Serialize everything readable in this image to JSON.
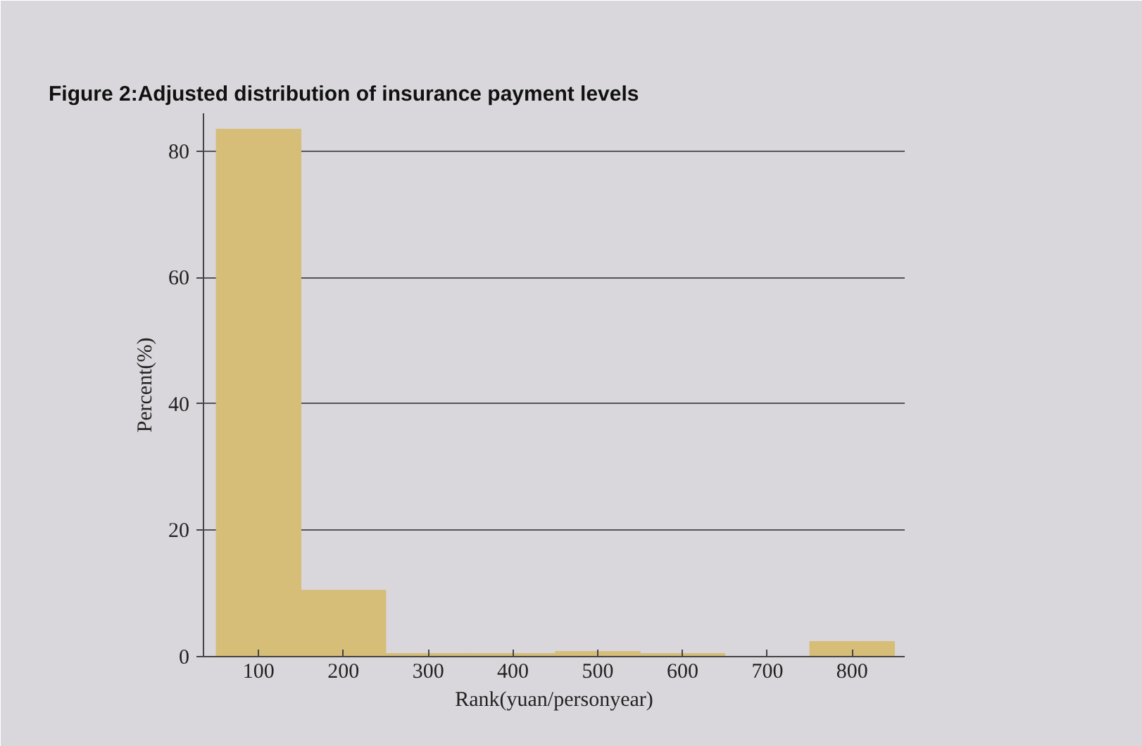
{
  "chart_data": {
    "type": "histogram",
    "title": "Figure 2:Adjusted distribution of insurance payment levels",
    "xlabel": "Rank(yuan/personyear)",
    "ylabel": "Percent(%)",
    "bins": [
      50,
      150,
      250,
      350,
      450,
      550,
      650,
      750,
      850
    ],
    "values": [
      83.5,
      10.5,
      0.5,
      0.5,
      0.8,
      0.5,
      null,
      2.4
    ],
    "color": "#d6bd78",
    "xlim": [
      35,
      862
    ],
    "ylim": [
      0,
      86
    ],
    "xticks": [
      100,
      200,
      300,
      400,
      500,
      600,
      700,
      800
    ],
    "yticks": [
      0,
      20,
      40,
      60,
      80
    ],
    "grid": "y"
  }
}
